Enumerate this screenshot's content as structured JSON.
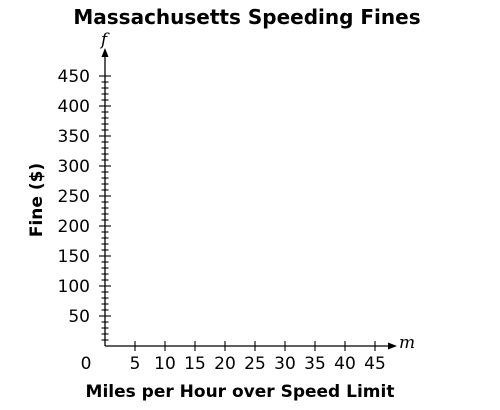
{
  "chart_data": {
    "type": "scatter",
    "title": "Massachusetts Speeding Fines",
    "xlabel": "Miles per Hour over Speed Limit",
    "ylabel": "Fine ($)",
    "x_variable": "m",
    "y_variable": "f",
    "origin_label": "0",
    "xlim": [
      0,
      47
    ],
    "ylim": [
      0,
      470
    ],
    "x_major_ticks": [
      5,
      10,
      15,
      20,
      25,
      30,
      35,
      40,
      45
    ],
    "x_minor_step": 5,
    "y_major_ticks": [
      50,
      100,
      150,
      200,
      250,
      300,
      350,
      400,
      450
    ],
    "y_minor_step": 10,
    "grid": false,
    "series": [],
    "colors": {
      "axis": "#000000",
      "text": "#000000"
    }
  }
}
